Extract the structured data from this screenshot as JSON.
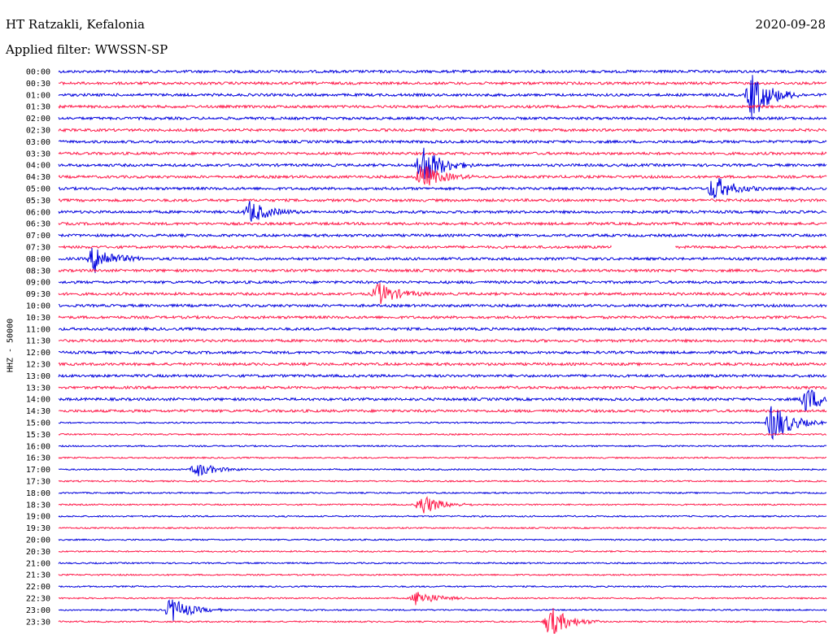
{
  "header": {
    "station": "HT Ratzakli, Kefalonia",
    "date": "2020-09-28",
    "filter": "Applied filter: WWSSN-SP"
  },
  "chart_data": {
    "type": "line",
    "title": "HT Ratzakli, Kefalonia",
    "ylabel": "HHZ - 50000",
    "y_tick_labels": [
      "00:00",
      "00:30",
      "01:00",
      "01:30",
      "02:00",
      "02:30",
      "03:00",
      "03:30",
      "04:00",
      "04:30",
      "05:00",
      "05:30",
      "06:00",
      "06:30",
      "07:00",
      "07:30",
      "08:00",
      "08:30",
      "09:00",
      "09:30",
      "10:00",
      "10:30",
      "11:00",
      "11:30",
      "12:00",
      "12:30",
      "13:00",
      "13:30",
      "14:00",
      "14:30",
      "15:00",
      "15:30",
      "16:00",
      "16:30",
      "17:00",
      "17:30",
      "18:00",
      "18:30",
      "19:00",
      "19:30",
      "20:00",
      "20:30",
      "21:00",
      "21:30",
      "22:00",
      "22:30",
      "23:00",
      "23:30"
    ],
    "x_range_minutes": [
      0,
      30
    ],
    "trace_colors": [
      "#0000dd",
      "#ff1a4a"
    ],
    "gaps": [
      {
        "row": "07:30",
        "from_minute": 21.6,
        "to_minute": 24.1
      }
    ],
    "events": [
      {
        "row": "01:00",
        "minute": 27.1,
        "amplitude": 30
      },
      {
        "row": "04:00",
        "minute": 14.2,
        "amplitude": 28
      },
      {
        "row": "04:30",
        "minute": 14.2,
        "amplitude": 16
      },
      {
        "row": "05:00",
        "minute": 25.6,
        "amplitude": 16
      },
      {
        "row": "06:00",
        "minute": 7.5,
        "amplitude": 14
      },
      {
        "row": "08:00",
        "minute": 1.4,
        "amplitude": 18
      },
      {
        "row": "09:30",
        "minute": 12.5,
        "amplitude": 14
      },
      {
        "row": "14:00",
        "minute": 29.2,
        "amplitude": 16
      },
      {
        "row": "15:00",
        "minute": 27.9,
        "amplitude": 26
      },
      {
        "row": "17:00",
        "minute": 5.4,
        "amplitude": 9
      },
      {
        "row": "18:30",
        "minute": 14.2,
        "amplitude": 13
      },
      {
        "row": "22:30",
        "minute": 14.0,
        "amplitude": 10
      },
      {
        "row": "23:00",
        "minute": 4.4,
        "amplitude": 16
      },
      {
        "row": "23:30",
        "minute": 19.2,
        "amplitude": 20
      }
    ]
  }
}
